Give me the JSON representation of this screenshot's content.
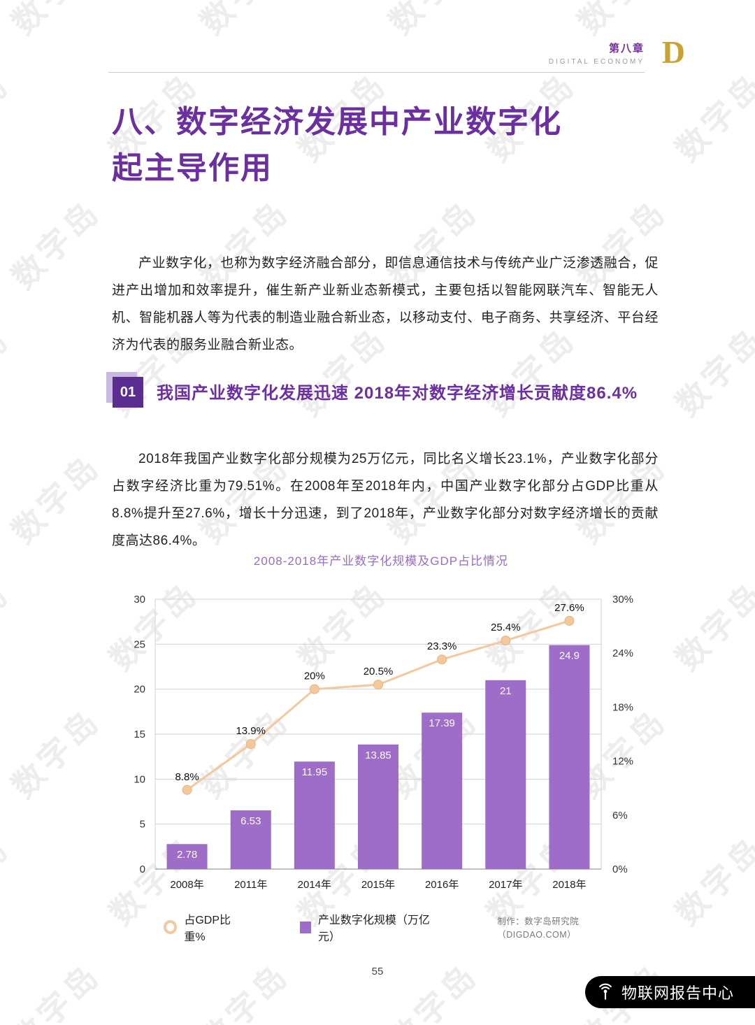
{
  "page": {
    "chapter": "第八章",
    "chapter_sub": "DIGITAL ECONOMY",
    "logo": "D",
    "page_number": "55",
    "watermark": "数字岛",
    "footer_badge": "物联网报告中心"
  },
  "title": {
    "line1": "八、数字经济发展中产业数字化",
    "line2": "起主导作用"
  },
  "intro": "产业数字化，也称为数字经济融合部分，即信息通信技术与传统产业广泛渗透融合，促进产出增加和效率提升，催生新产业新业态新模式，主要包括以智能网联汽车、智能无人机、智能机器人等为代表的制造业融合新业态，以移动支付、电子商务、共享经济、平台经济为代表的服务业融合新业态。",
  "section": {
    "number": "01",
    "heading": "我国产业数字化发展迅速 2018年对数字经济增长贡献度86.4%"
  },
  "body": "2018年我国产业数字化部分规模为25万亿元，同比名义增长23.1%，产业数字化部分占数字经济比重为79.51%。在2008年至2018年内，中国产业数字化部分占GDP比重从8.8%提升至27.6%，增长十分迅速，到了2018年，产业数字化部分对数字经济增长的贡献度高达86.4%。",
  "chart_data": {
    "type": "bar",
    "title": "2008-2018年产业数字化规模及GDP占比情况",
    "categories": [
      "2008年",
      "2011年",
      "2014年",
      "2015年",
      "2016年",
      "2017年",
      "2018年"
    ],
    "series": [
      {
        "name": "产业数字化规模（万亿元）",
        "type": "bar",
        "values": [
          2.78,
          6.53,
          11.95,
          13.85,
          17.39,
          21,
          24.9
        ],
        "labels": [
          "2.78",
          "6.53",
          "11.95",
          "13.85",
          "17.39",
          "21",
          "24.9"
        ],
        "color": "#9d6dc8"
      },
      {
        "name": "占GDP比重%",
        "type": "line",
        "values": [
          8.8,
          13.9,
          20,
          20.5,
          23.3,
          25.4,
          27.6
        ],
        "labels": [
          "8.8%",
          "13.9%",
          "20%",
          "20.5%",
          "23.3%",
          "25.4%",
          "27.6%"
        ],
        "color": "#f3c89d"
      }
    ],
    "left_axis": {
      "min": 0,
      "max": 30,
      "ticks": [
        0,
        5,
        10,
        15,
        20,
        25,
        30
      ]
    },
    "right_axis": {
      "min": 0,
      "max": 30,
      "tick_values": [
        0,
        6,
        12,
        18,
        24,
        30
      ],
      "tick_labels": [
        "0%",
        "6%",
        "12%",
        "18%",
        "24%",
        "30%"
      ]
    },
    "legend": [
      {
        "label": "占GDP比重%",
        "marker": "ring",
        "color": "#f3c89d"
      },
      {
        "label": "产业数字化规模（万亿元）",
        "marker": "square",
        "color": "#9d6dc8"
      }
    ],
    "credit": "制作：数字岛研究院（DIGDAO.COM）",
    "grid": true,
    "legend_position": "bottom"
  }
}
